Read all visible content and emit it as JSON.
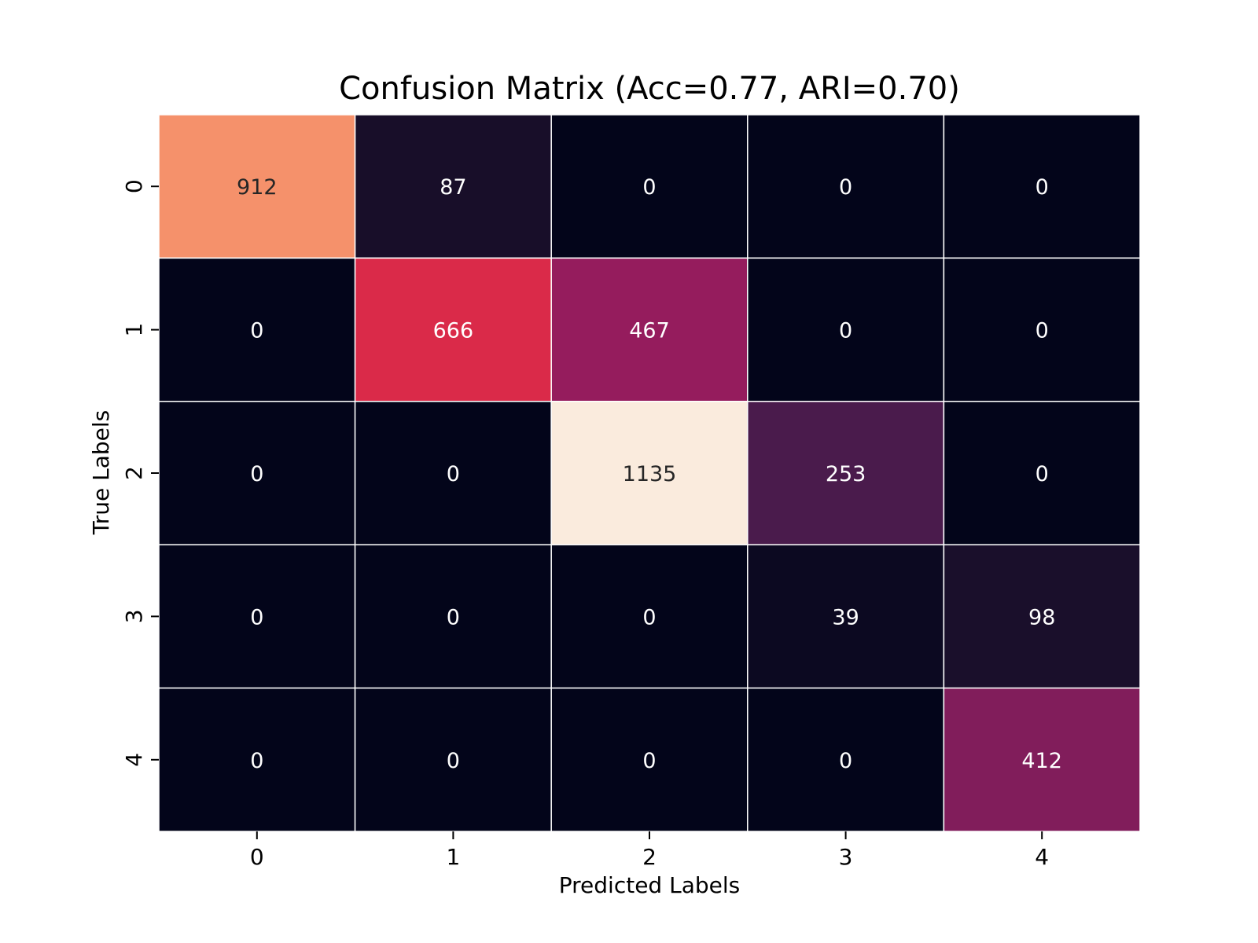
{
  "chart_data": {
    "type": "heatmap",
    "title": "Confusion Matrix (Acc=0.77, ARI=0.70)",
    "xlabel": "Predicted Labels",
    "ylabel": "True Labels",
    "x_categories": [
      "0",
      "1",
      "2",
      "3",
      "4"
    ],
    "y_categories": [
      "0",
      "1",
      "2",
      "3",
      "4"
    ],
    "values": [
      [
        912,
        87,
        0,
        0,
        0
      ],
      [
        0,
        666,
        467,
        0,
        0
      ],
      [
        0,
        0,
        1135,
        253,
        0
      ],
      [
        0,
        0,
        0,
        39,
        98
      ],
      [
        0,
        0,
        0,
        0,
        412
      ]
    ],
    "colormap": "rocket",
    "colorbar": false,
    "grid": false
  }
}
